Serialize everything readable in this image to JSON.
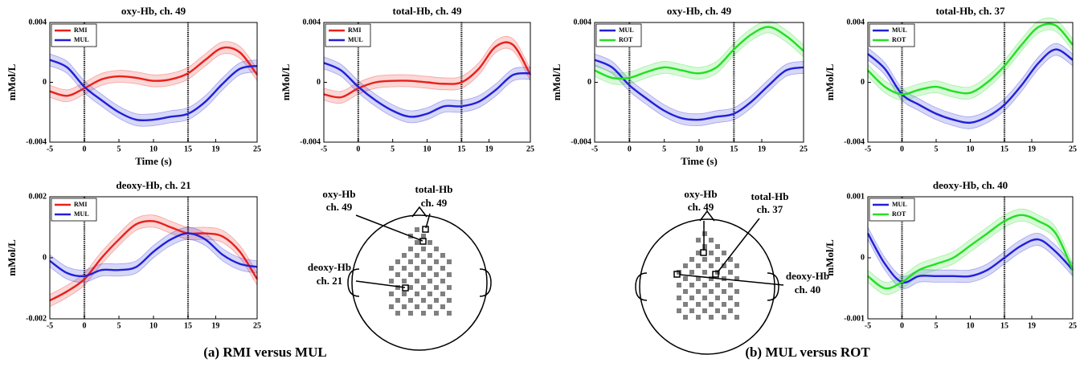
{
  "chart_data": [
    {
      "type": "line",
      "title": "oxy-Hb, ch. 49",
      "xlabel": "Time (s)",
      "ylabel": "mMol/L",
      "x": [
        -5,
        -2.5,
        0,
        2.5,
        5,
        7.5,
        10,
        12.5,
        15,
        17.5,
        20,
        22.5,
        25
      ],
      "xlim": [
        -5,
        25
      ],
      "xticks": [
        -5,
        0,
        5,
        10,
        15,
        19,
        25
      ],
      "ylim": [
        -0.004,
        0.004
      ],
      "yticks": [
        0.004,
        0,
        -0.004
      ],
      "vlines": [
        0,
        15
      ],
      "legend": "upper left",
      "series": [
        {
          "name": "RMI",
          "color": "#e8201c",
          "error": 0.0004,
          "values": [
            -0.0006,
            -0.0009,
            -0.0004,
            0.0002,
            0.0004,
            0.0003,
            0.0001,
            0.0002,
            0.0006,
            0.0015,
            0.0023,
            0.002,
            0.0005
          ]
        },
        {
          "name": "MUL",
          "color": "#2020d8",
          "error": 0.0004,
          "values": [
            0.0015,
            0.001,
            -0.0003,
            -0.0012,
            -0.002,
            -0.0025,
            -0.0025,
            -0.0023,
            -0.0021,
            -0.0013,
            -0.0001,
            0.0009,
            0.0011
          ]
        }
      ]
    },
    {
      "type": "line",
      "title": "total-Hb, ch. 49",
      "ylabel": "mMol/L",
      "x": [
        -5,
        -2.5,
        0,
        2.5,
        5,
        7.5,
        10,
        12.5,
        15,
        17.5,
        20,
        22.5,
        25
      ],
      "xlim": [
        -5,
        25
      ],
      "xticks": [
        -5,
        0,
        5,
        10,
        15,
        19,
        25
      ],
      "ylim": [
        -0.004,
        0.004
      ],
      "yticks": [
        0.004,
        0,
        -0.004
      ],
      "vlines": [
        0,
        15
      ],
      "legend": "upper left",
      "series": [
        {
          "name": "RMI",
          "color": "#e8201c",
          "error": 0.0004,
          "values": [
            -0.0008,
            -0.001,
            -0.0004,
            0,
            0.0001,
            0.0001,
            0,
            -0.0001,
            0,
            0.0009,
            0.0024,
            0.0025,
            0.0005
          ]
        },
        {
          "name": "MUL",
          "color": "#2020d8",
          "error": 0.0004,
          "values": [
            0.0013,
            0.0008,
            -0.0003,
            -0.0012,
            -0.0019,
            -0.0023,
            -0.0021,
            -0.0016,
            -0.0016,
            -0.0013,
            -0.0005,
            0.0005,
            0.0006
          ]
        }
      ]
    },
    {
      "type": "line",
      "title": "oxy-Hb, ch. 49",
      "xlabel": "Time (s)",
      "ylabel": "mMol/L",
      "x": [
        -5,
        -2.5,
        0,
        2.5,
        5,
        7.5,
        10,
        12.5,
        15,
        17.5,
        20,
        22.5,
        25
      ],
      "xlim": [
        -5,
        25
      ],
      "xticks": [
        -5,
        0,
        5,
        10,
        15,
        19,
        25
      ],
      "ylim": [
        -0.004,
        0.004
      ],
      "yticks": [
        0.004,
        0,
        -0.004
      ],
      "vlines": [
        0,
        15
      ],
      "legend": "upper left",
      "series": [
        {
          "name": "MUL",
          "color": "#2020d8",
          "error": 0.0004,
          "values": [
            0.0015,
            0.001,
            -0.0002,
            -0.0011,
            -0.0019,
            -0.0024,
            -0.0025,
            -0.0023,
            -0.0021,
            -0.0013,
            -0.0002,
            0.0008,
            0.001
          ]
        },
        {
          "name": "ROT",
          "color": "#22e022",
          "error": 0.0004,
          "values": [
            0.0008,
            0.0003,
            0.0003,
            0.0007,
            0.001,
            0.0008,
            0.0006,
            0.001,
            0.0022,
            0.0032,
            0.0037,
            0.0031,
            0.0021
          ]
        }
      ]
    },
    {
      "type": "line",
      "title": "total-Hb, ch. 37",
      "ylabel": "mMol/L",
      "x": [
        -5,
        -2.5,
        0,
        2.5,
        5,
        7.5,
        10,
        12.5,
        15,
        17.5,
        20,
        22.5,
        25
      ],
      "xlim": [
        -5,
        25
      ],
      "xticks": [
        -5,
        0,
        5,
        10,
        15,
        19,
        25
      ],
      "ylim": [
        -0.004,
        0.004
      ],
      "yticks": [
        0.004,
        0,
        -0.004
      ],
      "vlines": [
        0,
        15
      ],
      "legend": "upper left",
      "series": [
        {
          "name": "MUL",
          "color": "#2020d8",
          "error": 0.0004,
          "values": [
            0.0019,
            0.0009,
            -0.0008,
            -0.0015,
            -0.0021,
            -0.0025,
            -0.0027,
            -0.0023,
            -0.0015,
            -0.0002,
            0.0013,
            0.0022,
            0.0015
          ]
        },
        {
          "name": "ROT",
          "color": "#22e022",
          "error": 0.0004,
          "values": [
            0.0008,
            -0.0003,
            -0.0008,
            -0.0005,
            -0.0003,
            -0.0006,
            -0.0007,
            0,
            0.0011,
            0.0025,
            0.0037,
            0.0038,
            0.0025
          ]
        }
      ]
    },
    {
      "type": "line",
      "title": "deoxy-Hb, ch. 21",
      "ylabel": "mMol/L",
      "x": [
        -5,
        -2.5,
        0,
        2.5,
        5,
        7.5,
        10,
        12.5,
        15,
        17.5,
        20,
        22.5,
        25
      ],
      "xlim": [
        -5,
        25
      ],
      "xticks": [
        -5,
        0,
        5,
        10,
        15,
        19,
        25
      ],
      "ylim": [
        -0.002,
        0.002
      ],
      "yticks": [
        0.002,
        0,
        -0.002
      ],
      "vlines": [
        0,
        15
      ],
      "legend": "upper left",
      "series": [
        {
          "name": "RMI",
          "color": "#e8201c",
          "error": 0.0002,
          "values": [
            -0.0014,
            -0.0011,
            -0.0007,
            0,
            0.0006,
            0.0011,
            0.0012,
            0.001,
            0.0008,
            0.0008,
            0.0007,
            0.0002,
            -0.0007
          ]
        },
        {
          "name": "MUL",
          "color": "#2020d8",
          "error": 0.0002,
          "values": [
            -0.0001,
            -0.0005,
            -0.0006,
            -0.0004,
            -0.0004,
            -0.0003,
            0.0002,
            0.0006,
            0.0008,
            0.0006,
            0.0001,
            -0.0002,
            -0.0003
          ]
        }
      ]
    },
    {
      "type": "line",
      "title": "deoxy-Hb, ch. 40",
      "ylabel": "mMol/L",
      "x": [
        -5,
        -2.5,
        0,
        2.5,
        5,
        7.5,
        10,
        12.5,
        15,
        17.5,
        20,
        22.5,
        25
      ],
      "xlim": [
        -5,
        25
      ],
      "xticks": [
        -5,
        0,
        5,
        10,
        15,
        19,
        25
      ],
      "ylim": [
        -0.001,
        0.001
      ],
      "yticks": [
        0.001,
        0,
        -0.001
      ],
      "vlines": [
        0,
        15
      ],
      "legend": "upper left",
      "series": [
        {
          "name": "MUL",
          "color": "#2020d8",
          "error": 0.0001,
          "values": [
            0.0004,
            -0.0001,
            -0.0004,
            -0.0003,
            -0.0003,
            -0.0003,
            -0.0003,
            -0.0002,
            0,
            0.0002,
            0.0003,
            0.0001,
            -0.0002
          ]
        },
        {
          "name": "ROT",
          "color": "#22e022",
          "error": 0.0001,
          "values": [
            -0.0003,
            -0.0005,
            -0.0004,
            -0.0002,
            -0.0001,
            0,
            0.0002,
            0.0004,
            0.0006,
            0.0007,
            0.0006,
            0.0004,
            -0.0002
          ]
        }
      ]
    }
  ],
  "diagrams": [
    {
      "labels": [
        {
          "name": "oxy-Hb",
          "channel": "ch. 49"
        },
        {
          "name": "total-Hb",
          "channel": "ch. 49"
        },
        {
          "name": "deoxy-Hb",
          "channel": "ch. 21"
        }
      ]
    },
    {
      "labels": [
        {
          "name": "oxy-Hb",
          "channel": "ch. 49"
        },
        {
          "name": "total-Hb",
          "channel": "ch. 37"
        },
        {
          "name": "deoxy-Hb",
          "channel": "ch. 40"
        }
      ]
    }
  ],
  "captions": [
    "(a) RMI versus MUL",
    "(b) MUL versus ROT"
  ]
}
